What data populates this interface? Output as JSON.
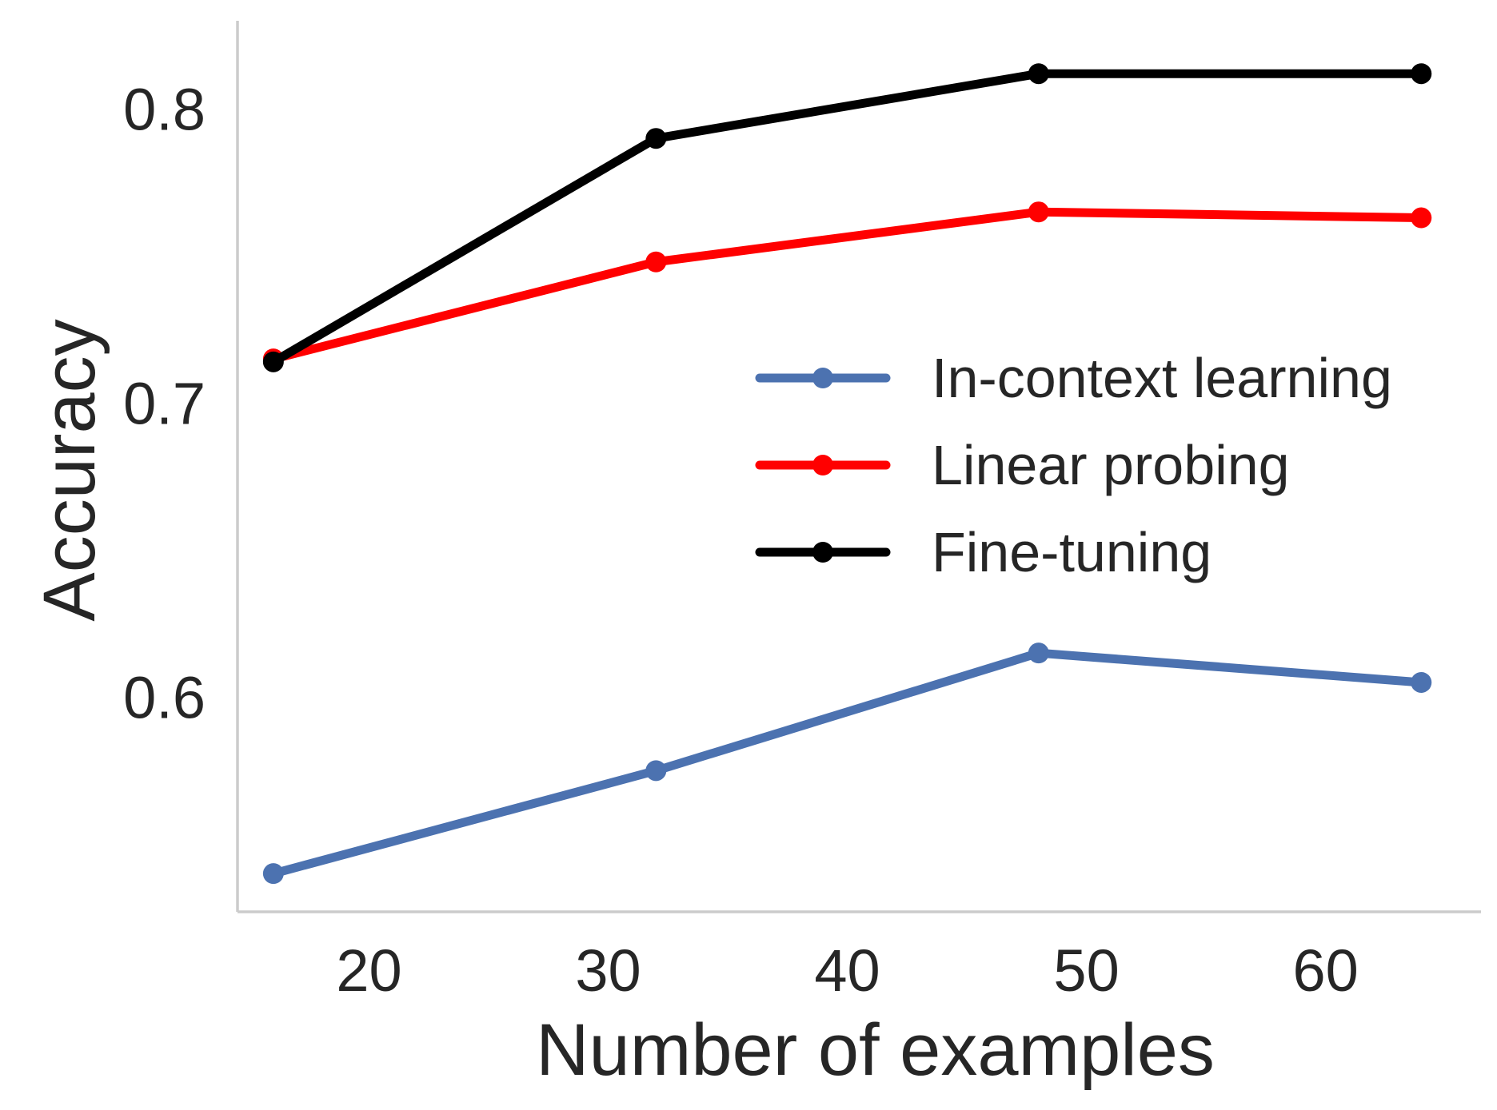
{
  "chart_data": {
    "type": "line",
    "title": "",
    "xlabel": "Number of examples",
    "ylabel": "Accuracy",
    "xlim": [
      14.5,
      66.5
    ],
    "ylim": [
      0.527,
      0.83
    ],
    "xticks": [
      20,
      30,
      40,
      50,
      60
    ],
    "xtick_labels": [
      "20",
      "30",
      "40",
      "50",
      "60"
    ],
    "yticks": [
      0.6,
      0.7,
      0.8
    ],
    "ytick_labels": [
      "0.6",
      "0.7",
      "0.8"
    ],
    "grid": false,
    "legend_position": "center-right",
    "x": [
      16,
      32,
      48,
      64
    ],
    "series": [
      {
        "name": "In-context learning",
        "color": "#4c72b0",
        "values": [
          0.54,
          0.575,
          0.615,
          0.605
        ]
      },
      {
        "name": "Linear probing",
        "color": "#ff0000",
        "values": [
          0.715,
          0.748,
          0.765,
          0.763
        ]
      },
      {
        "name": "Fine-tuning",
        "color": "#000000",
        "values": [
          0.714,
          0.79,
          0.812,
          0.812
        ]
      }
    ]
  }
}
